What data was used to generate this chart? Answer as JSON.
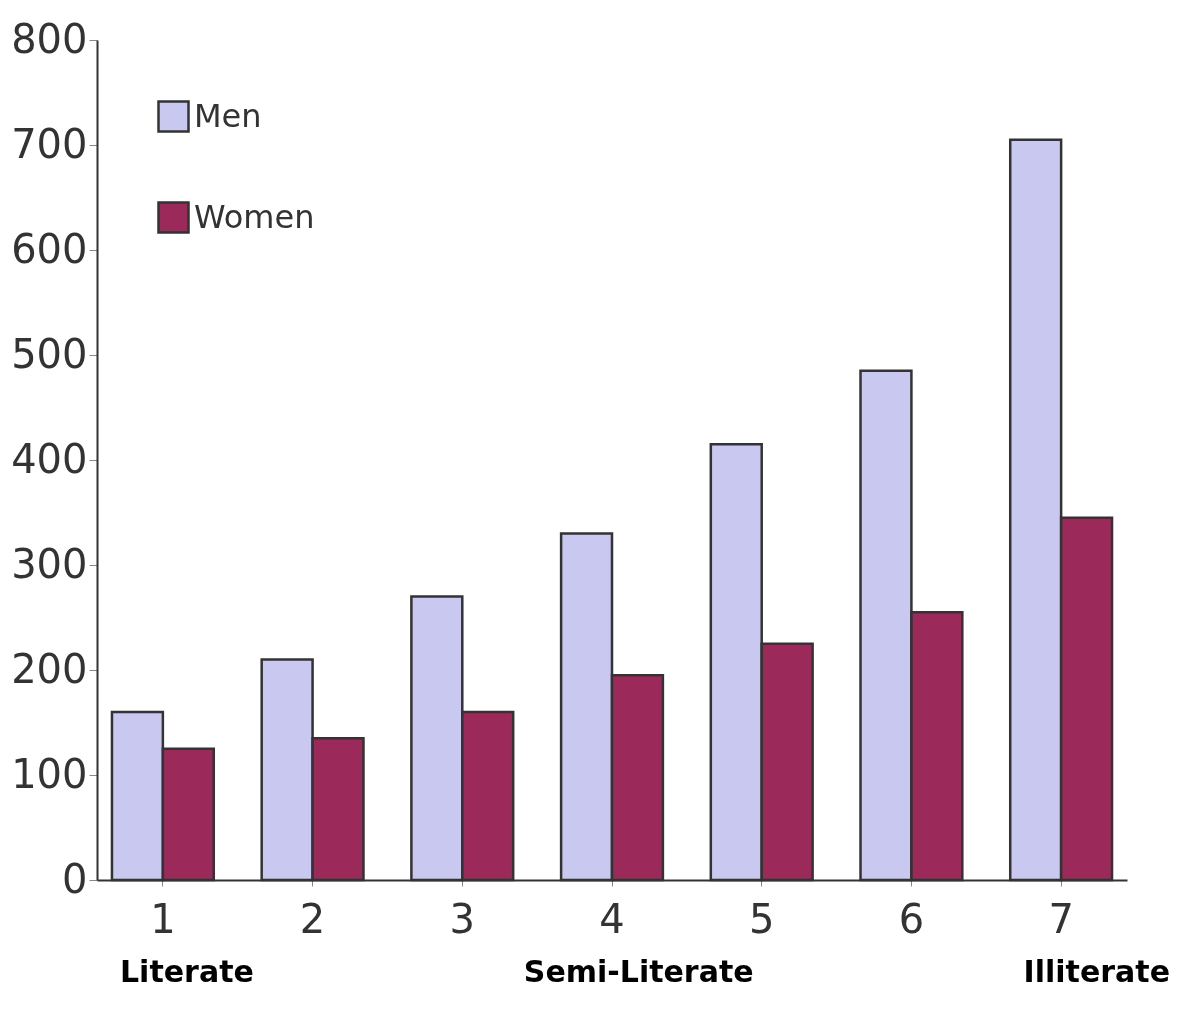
{
  "chart_data": {
    "type": "bar",
    "categories": [
      "1",
      "2",
      "3",
      "4",
      "5",
      "6",
      "7"
    ],
    "series": [
      {
        "name": "Men",
        "color": "#c8c8f0",
        "values": [
          160,
          210,
          270,
          330,
          415,
          485,
          705
        ]
      },
      {
        "name": "Women",
        "color": "#9b2a5a",
        "values": [
          125,
          135,
          160,
          195,
          225,
          255,
          345
        ]
      }
    ],
    "ylim": [
      0,
      800
    ],
    "yticks": [
      0,
      100,
      200,
      300,
      400,
      500,
      600,
      700,
      800
    ],
    "grid": false,
    "legend": "top left",
    "annotations": [
      "Literate",
      "Semi-Literate",
      "Illiterate"
    ]
  }
}
